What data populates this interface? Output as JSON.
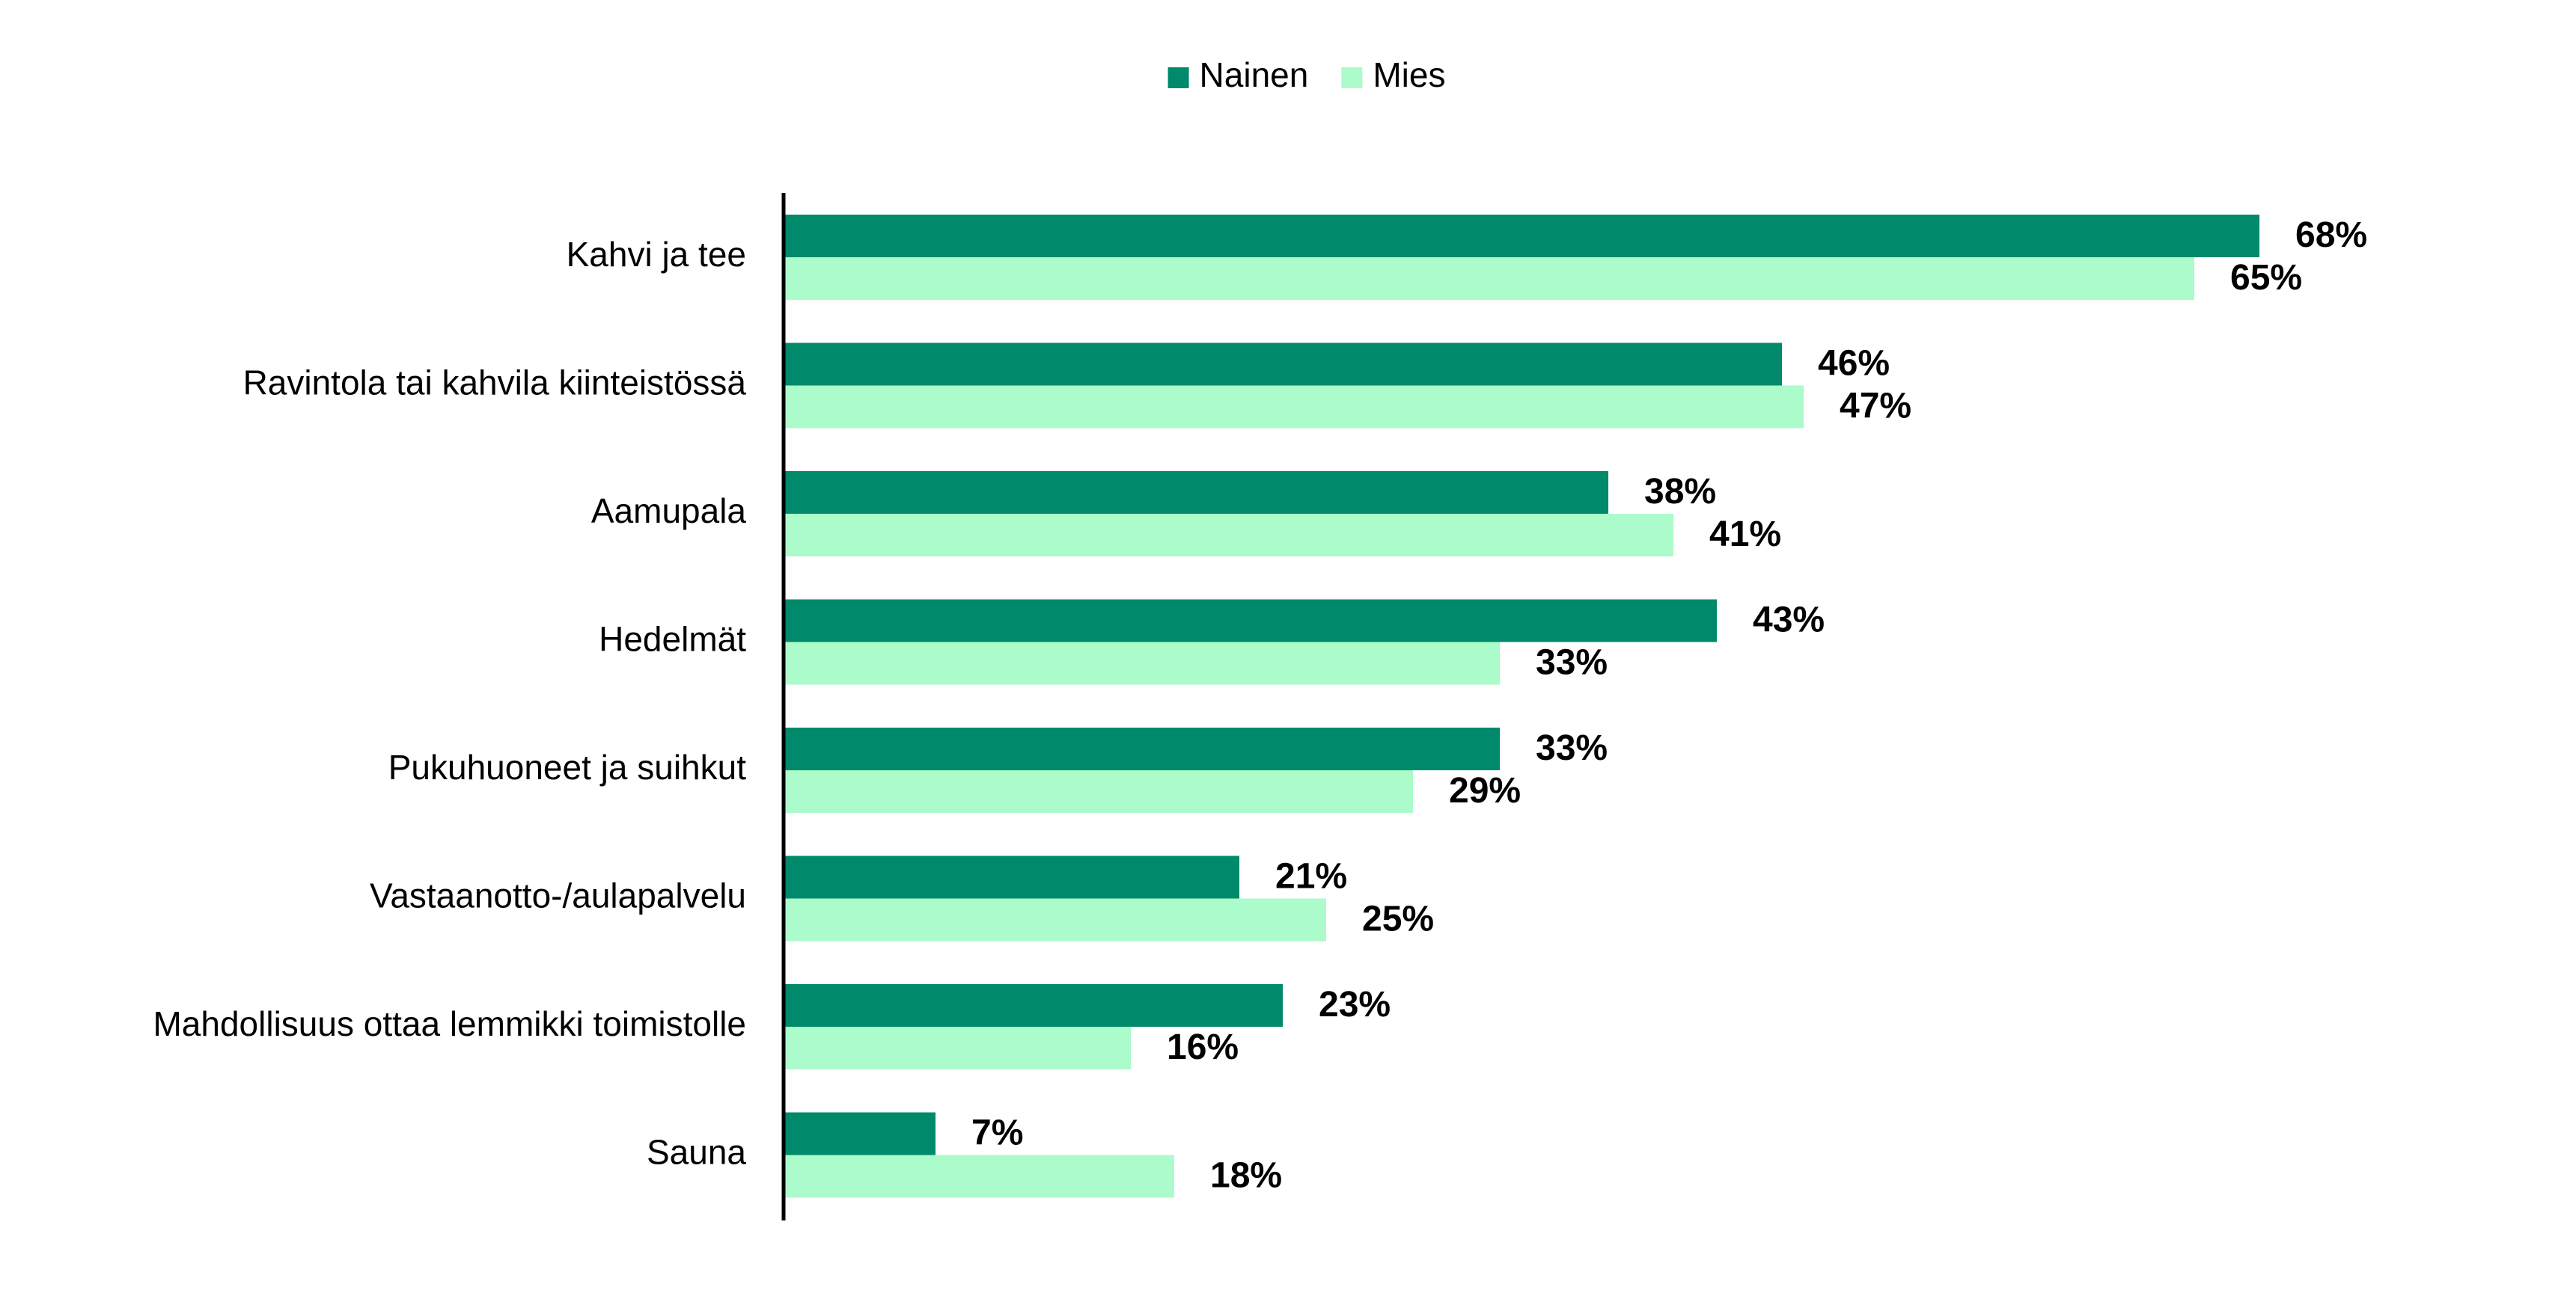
{
  "chart_data": {
    "type": "bar",
    "orientation": "horizontal",
    "categories": [
      "Kahvi ja tee",
      "Ravintola tai kahvila kiinteistössä",
      "Aamupala",
      "Hedelmät",
      "Pukuhuoneet ja suihkut",
      "Vastaanotto-/aulapalvelu",
      "Mahdollisuus ottaa lemmikki toimistolle",
      "Sauna"
    ],
    "series": [
      {
        "name": "Nainen",
        "color": "#00896A",
        "values": [
          68,
          46,
          38,
          43,
          33,
          21,
          23,
          7
        ],
        "labels": [
          "68%",
          "46%",
          "38%",
          "43%",
          "33%",
          "21%",
          "23%",
          "7%"
        ]
      },
      {
        "name": "Mies",
        "color": "#ABFBCB",
        "values": [
          65,
          47,
          41,
          33,
          29,
          25,
          16,
          18
        ],
        "labels": [
          "65%",
          "47%",
          "41%",
          "33%",
          "29%",
          "25%",
          "16%",
          "18%"
        ]
      }
    ],
    "unit": "%",
    "xlim": [
      0,
      100
    ],
    "grid": false,
    "legend": "top-center",
    "title": "",
    "xlabel": "",
    "ylabel": ""
  }
}
